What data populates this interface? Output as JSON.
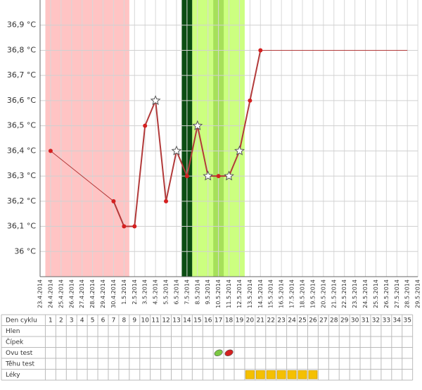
{
  "chart_data": {
    "type": "line",
    "x": [
      "23.4.2014",
      "24.4.2014",
      "25.4.2014",
      "26.4.2014",
      "27.4.2014",
      "28.4.2014",
      "29.4.2014",
      "30.4.2014",
      "1.5.2014",
      "2.5.2014",
      "3.5.2014",
      "4.5.2014",
      "5.5.2014",
      "6.5.2014",
      "7.5.2014",
      "8.5.2014",
      "9.5.2014",
      "10.5.2014",
      "11.5.2014",
      "12.5.2014",
      "13.5.2014",
      "14.5.2014",
      "15.5.2014",
      "16.5.2014",
      "17.5.2014",
      "18.5.2014",
      "19.5.2014",
      "20.5.2014",
      "21.5.2014",
      "22.5.2014",
      "23.5.2014",
      "24.5.2014",
      "25.5.2014",
      "26.5.2014",
      "27.5.2014",
      "28.5.2014",
      "29.5.2014"
    ],
    "values": [
      null,
      36.4,
      null,
      null,
      null,
      null,
      null,
      36.2,
      36.1,
      36.1,
      36.5,
      36.6,
      36.2,
      36.4,
      36.3,
      36.5,
      36.3,
      36.3,
      36.3,
      36.4,
      36.6,
      36.8,
      null,
      null,
      null,
      null,
      null,
      null,
      null,
      null,
      null,
      null,
      null,
      null,
      null,
      null,
      null
    ],
    "markers": [
      null,
      "dot",
      null,
      null,
      null,
      null,
      null,
      "dot",
      "dot",
      "dot",
      "dot",
      "star",
      "dot",
      "star",
      "dot",
      "star",
      "star",
      "dot",
      "star",
      "star",
      "dot",
      "dot",
      null,
      null,
      null,
      null,
      null,
      null,
      null,
      null,
      null,
      null,
      null,
      null,
      null,
      null,
      null
    ],
    "color": "#b23a3a",
    "ylim": [
      35.9,
      37.0
    ],
    "yticks": [
      {
        "value": 36.0,
        "label": "36 °C"
      },
      {
        "value": 36.1,
        "label": "36,1 °C"
      },
      {
        "value": 36.2,
        "label": "36,2 °C"
      },
      {
        "value": 36.3,
        "label": "36,3 °C"
      },
      {
        "value": 36.4,
        "label": "36,4 °C"
      },
      {
        "value": 36.5,
        "label": "36,5 °C"
      },
      {
        "value": 36.6,
        "label": "36,6 °C"
      },
      {
        "value": 36.7,
        "label": "36,7 °C"
      },
      {
        "value": 36.8,
        "label": "36,8 °C"
      },
      {
        "value": 36.9,
        "label": "36,9 °C"
      }
    ],
    "grid": true,
    "phases": [
      {
        "from": 1,
        "to": 8,
        "color": "#ffc4c4"
      },
      {
        "from": 14,
        "to": 14,
        "color": "#0b4d12"
      },
      {
        "from": 15,
        "to": 19,
        "color": "#ccff80"
      },
      {
        "from": 17,
        "to": 17,
        "color": "#a6e05a"
      }
    ]
  },
  "cycle_table": {
    "rows": [
      "Den cyklu",
      "Hlen",
      "Čípek",
      "Ovu test",
      "Těhu test",
      "Léky"
    ],
    "days": [
      1,
      2,
      3,
      4,
      5,
      6,
      7,
      8,
      9,
      10,
      11,
      12,
      13,
      14,
      15,
      16,
      17,
      18,
      19,
      20,
      21,
      22,
      23,
      24,
      25,
      26,
      27,
      28,
      29,
      30,
      31,
      32,
      33,
      34,
      35
    ],
    "ovu_test": [
      {
        "day": 17,
        "color": "#7cc843"
      },
      {
        "day": 18,
        "color": "#d42020"
      }
    ],
    "leky": [
      20,
      21,
      22,
      23,
      24,
      25,
      26
    ]
  }
}
